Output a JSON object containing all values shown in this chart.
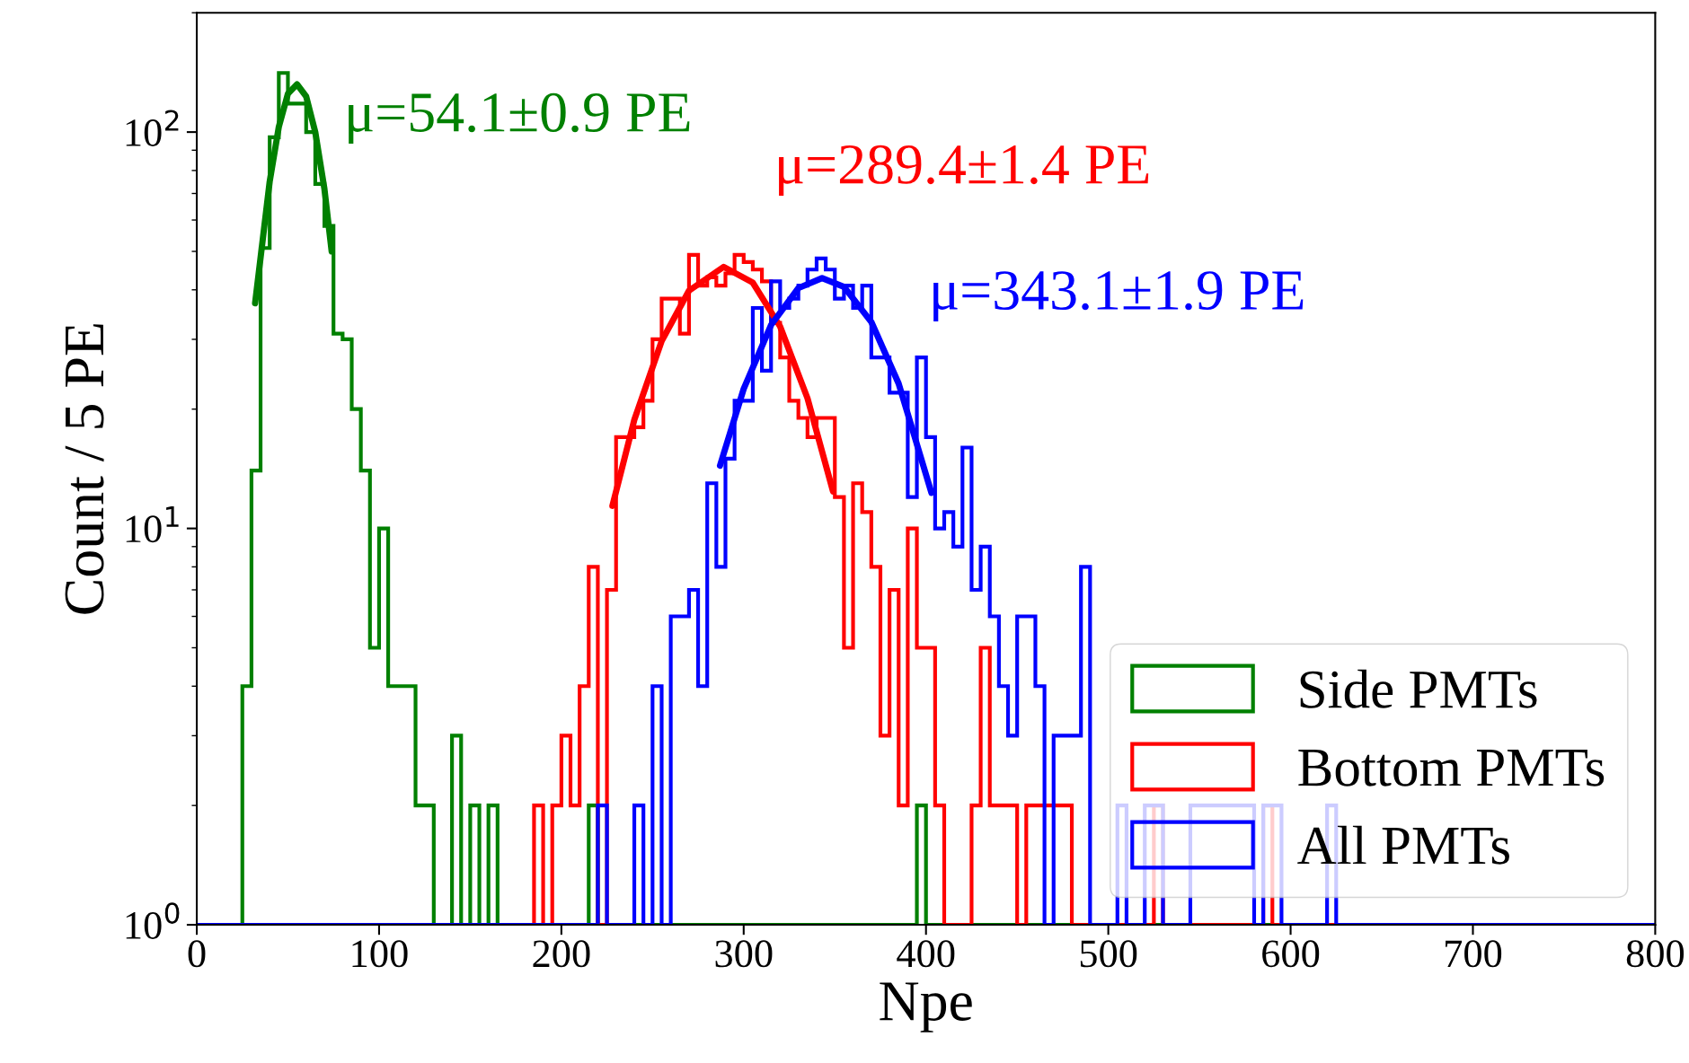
{
  "chart_data": {
    "type": "histogram",
    "xlabel": "Npe",
    "ylabel": "Count / 5 PE",
    "xlim": [
      0,
      800
    ],
    "xticks": [
      0,
      100,
      200,
      300,
      400,
      500,
      600,
      700,
      800
    ],
    "ylim": [
      1,
      200
    ],
    "yticks": [
      {
        "value": 1,
        "label": "10$^{0}$"
      },
      {
        "value": 10,
        "label": "10$^{1}$"
      },
      {
        "value": 100,
        "label": "10$^{2}$"
      }
    ],
    "log": "y",
    "legend": "bottom right",
    "annotations": [
      "μ=54.1±0.9 PE",
      "μ=289.4±1.4 PE",
      "μ=343.1±1.9 PE"
    ],
    "bins": [
      0,
      5,
      10,
      15,
      20,
      25,
      30,
      35,
      40,
      45,
      50,
      55,
      60,
      65,
      70,
      75,
      80,
      85,
      90,
      95,
      100,
      105,
      110,
      115,
      120,
      125,
      130,
      135,
      140,
      145,
      150,
      155,
      160,
      165,
      170,
      175,
      180,
      185,
      190,
      195,
      200,
      205,
      210,
      215,
      220,
      225,
      230,
      235,
      240,
      245,
      250,
      255,
      260,
      265,
      270,
      275,
      280,
      285,
      290,
      295,
      300,
      305,
      310,
      315,
      320,
      325,
      330,
      335,
      340,
      345,
      350,
      355,
      360,
      365,
      370,
      375,
      380,
      385,
      390,
      395,
      400,
      405,
      410,
      415,
      420,
      425,
      430,
      435,
      440,
      445,
      450,
      455,
      460,
      465,
      470,
      475,
      480,
      485,
      490,
      495,
      500,
      505,
      510,
      515,
      520,
      525,
      530,
      535,
      540,
      545,
      550,
      555,
      560,
      565,
      570,
      575,
      580,
      585,
      590,
      595,
      600,
      605,
      610,
      615,
      620,
      625,
      630,
      635,
      640,
      645,
      650,
      655,
      660,
      665,
      670,
      675,
      680,
      685,
      690,
      695,
      700,
      705,
      710,
      715,
      720,
      725,
      730,
      735,
      740,
      745,
      750,
      755,
      760,
      765,
      770,
      775,
      780,
      785,
      790,
      795,
      800
    ],
    "series": [
      {
        "name": "Side PMTs",
        "color": "#008000",
        "values": [
          1,
          1,
          1,
          1,
          1,
          4,
          14,
          51,
          97,
          141,
          118,
          118,
          100,
          74,
          58,
          31,
          30,
          20,
          14,
          5,
          10,
          4,
          4,
          4,
          2,
          2,
          1,
          1,
          3,
          1,
          2,
          1,
          2,
          1,
          1,
          1,
          1,
          1,
          1,
          1,
          1,
          1,
          1,
          2,
          1,
          1,
          1,
          1,
          1,
          1,
          1,
          1,
          1,
          1,
          1,
          1,
          1,
          1,
          1,
          1,
          1,
          1,
          1,
          1,
          1,
          1,
          1,
          1,
          1,
          1,
          1,
          1,
          1,
          1,
          1,
          1,
          1,
          1,
          1,
          2,
          1,
          1,
          1,
          1,
          1,
          1,
          1,
          1,
          1,
          1,
          1,
          1,
          1,
          1,
          1,
          1,
          1,
          1,
          1,
          1,
          1,
          1,
          1,
          1,
          1,
          1,
          1,
          1,
          1,
          1,
          1,
          1,
          1,
          1,
          1,
          1,
          1,
          1,
          1,
          1,
          1,
          1,
          1,
          1,
          1,
          1,
          1,
          1,
          1,
          1,
          1,
          1,
          1,
          1,
          1,
          1,
          1,
          1,
          1,
          1,
          1,
          1,
          1,
          1,
          1,
          1,
          1,
          1,
          1,
          1,
          1,
          1,
          1,
          1,
          1,
          1,
          1,
          1,
          1,
          1
        ]
      },
      {
        "name": "Bottom PMTs",
        "color": "#ff0000",
        "values": [
          1,
          1,
          1,
          1,
          1,
          1,
          1,
          1,
          1,
          1,
          1,
          1,
          1,
          1,
          1,
          1,
          1,
          1,
          1,
          1,
          1,
          1,
          1,
          1,
          1,
          1,
          1,
          1,
          1,
          1,
          1,
          1,
          1,
          1,
          1,
          1,
          1,
          2,
          1,
          2,
          3,
          2,
          4,
          8,
          1,
          7,
          17,
          17,
          18,
          21,
          30,
          38,
          38,
          31,
          49,
          41,
          43,
          41,
          44,
          49,
          47,
          45,
          42,
          33,
          27,
          21,
          19,
          17,
          19,
          19,
          12,
          5,
          13,
          11,
          8,
          3,
          7,
          2,
          10,
          5,
          5,
          2,
          1,
          1,
          1,
          2,
          5,
          2,
          2,
          2,
          1,
          2,
          2,
          2,
          2,
          2,
          1,
          1,
          1,
          1,
          1,
          1,
          1,
          1,
          1,
          2,
          1,
          1,
          1,
          1,
          1,
          1,
          1,
          1,
          1,
          1,
          1,
          2,
          1,
          1,
          1,
          1,
          1,
          1,
          1,
          1,
          1,
          1,
          1,
          1,
          1,
          1,
          1,
          1,
          1,
          1,
          1,
          1,
          1,
          1,
          1,
          1,
          1,
          1,
          1,
          1,
          1,
          1,
          1,
          1,
          1,
          1,
          1,
          1,
          1,
          1,
          1,
          1,
          1,
          1
        ]
      },
      {
        "name": "All PMTs",
        "color": "#0000ff",
        "values": [
          1,
          1,
          1,
          1,
          1,
          1,
          1,
          1,
          1,
          1,
          1,
          1,
          1,
          1,
          1,
          1,
          1,
          1,
          1,
          1,
          1,
          1,
          1,
          1,
          1,
          1,
          1,
          1,
          1,
          1,
          1,
          1,
          1,
          1,
          1,
          1,
          1,
          1,
          1,
          1,
          1,
          1,
          1,
          1,
          2,
          1,
          1,
          1,
          2,
          1,
          4,
          1,
          6,
          6,
          7,
          4,
          13,
          8,
          15,
          21,
          21,
          36,
          25,
          42,
          36,
          38,
          41,
          45,
          48,
          45,
          38,
          41,
          36,
          41,
          27,
          27,
          22,
          22,
          12,
          27,
          17,
          10,
          11,
          9,
          16,
          7,
          9,
          6,
          4,
          3,
          6,
          6,
          4,
          1,
          3,
          3,
          3,
          8,
          1,
          1,
          1,
          2,
          1,
          1,
          2,
          2,
          1,
          1,
          1,
          2,
          2,
          2,
          2,
          2,
          2,
          2,
          1,
          2,
          2,
          1,
          1,
          1,
          1,
          1,
          2,
          1,
          1,
          1,
          1,
          1,
          1,
          1,
          1,
          1,
          1,
          1,
          1,
          1,
          1,
          1,
          1,
          1,
          1,
          1,
          1,
          1,
          1,
          1,
          1,
          1,
          1,
          1,
          1,
          1,
          1,
          1,
          1,
          1,
          1,
          1
        ]
      },
      {
        "type": "line",
        "color": "#018001",
        "x": [
          32,
          40,
          45,
          50,
          55,
          60,
          65,
          70,
          74
        ],
        "values": [
          37,
          75,
          103,
          125,
          132,
          123,
          100,
          72,
          50
        ]
      },
      {
        "type": "line",
        "color": "#fe0101",
        "x": [
          228,
          240,
          255,
          270,
          289,
          305,
          320,
          335,
          349
        ],
        "values": [
          11.4,
          18.8,
          29.7,
          39.8,
          45.7,
          41.7,
          32.3,
          21.3,
          12.4
        ]
      },
      {
        "type": "line",
        "color": "#0101fe",
        "x": [
          287,
          300,
          315,
          330,
          343,
          355,
          370,
          385,
          403
        ],
        "values": [
          14.4,
          22.5,
          32.6,
          40.4,
          42.8,
          40.7,
          33.2,
          23.2,
          12.3
        ]
      }
    ]
  }
}
